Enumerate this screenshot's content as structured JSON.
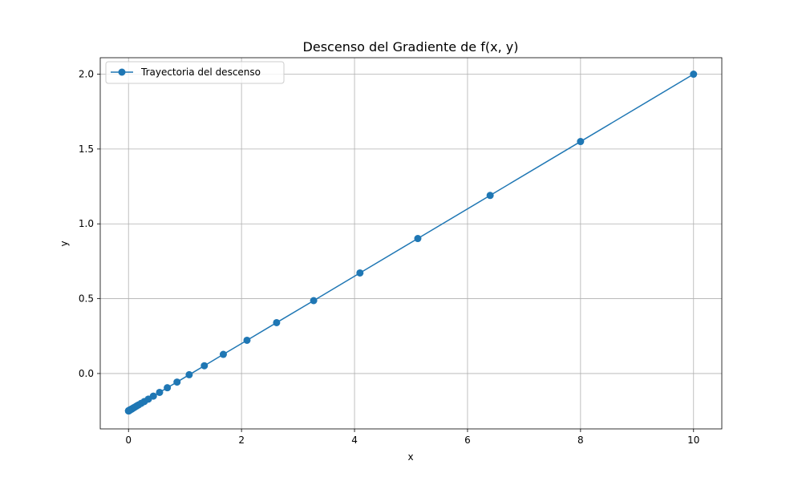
{
  "chart_data": {
    "type": "line",
    "title": "Descenso del Gradiente de f(x, y)",
    "xlabel": "x",
    "ylabel": "y",
    "xlim": [
      -0.5,
      10.5
    ],
    "ylim": [
      -0.37,
      2.11
    ],
    "xticks": [
      0,
      2,
      4,
      6,
      8,
      10
    ],
    "xtick_labels": [
      "0",
      "2",
      "4",
      "6",
      "8",
      "10"
    ],
    "yticks": [
      0.0,
      0.5,
      1.0,
      1.5,
      2.0
    ],
    "ytick_labels": [
      "0.0",
      "0.5",
      "1.0",
      "1.5",
      "2.0"
    ],
    "grid": true,
    "legend_position": "top-left",
    "colors": {
      "series": "#1f77b4",
      "grid": "#b0b0b0"
    },
    "series": [
      {
        "name": "Trayectoria del descenso",
        "marker": "circle",
        "x": [
          10.0,
          8.0,
          6.4,
          5.12,
          4.096,
          3.277,
          2.621,
          2.097,
          1.678,
          1.342,
          1.074,
          0.859,
          0.687,
          0.55,
          0.44,
          0.352,
          0.281,
          0.225,
          0.18,
          0.144,
          0.115,
          0.092,
          0.074,
          0.059,
          0.047,
          0.038,
          0.03,
          0.024,
          0.019,
          0.015,
          0.012,
          0.01,
          0.008,
          0.006,
          0.005,
          0.004,
          0.003,
          0.002,
          0.002,
          0.001,
          0.001
        ],
        "y": [
          2.0,
          1.55,
          1.19,
          0.902,
          0.672,
          0.487,
          0.34,
          0.222,
          0.128,
          0.052,
          -0.008,
          -0.057,
          -0.095,
          -0.126,
          -0.151,
          -0.171,
          -0.187,
          -0.199,
          -0.209,
          -0.217,
          -0.224,
          -0.229,
          -0.233,
          -0.237,
          -0.239,
          -0.241,
          -0.243,
          -0.244,
          -0.245,
          -0.246,
          -0.247,
          -0.247,
          -0.248,
          -0.248,
          -0.249,
          -0.249,
          -0.249,
          -0.249,
          -0.249,
          -0.25,
          -0.25
        ]
      }
    ]
  }
}
